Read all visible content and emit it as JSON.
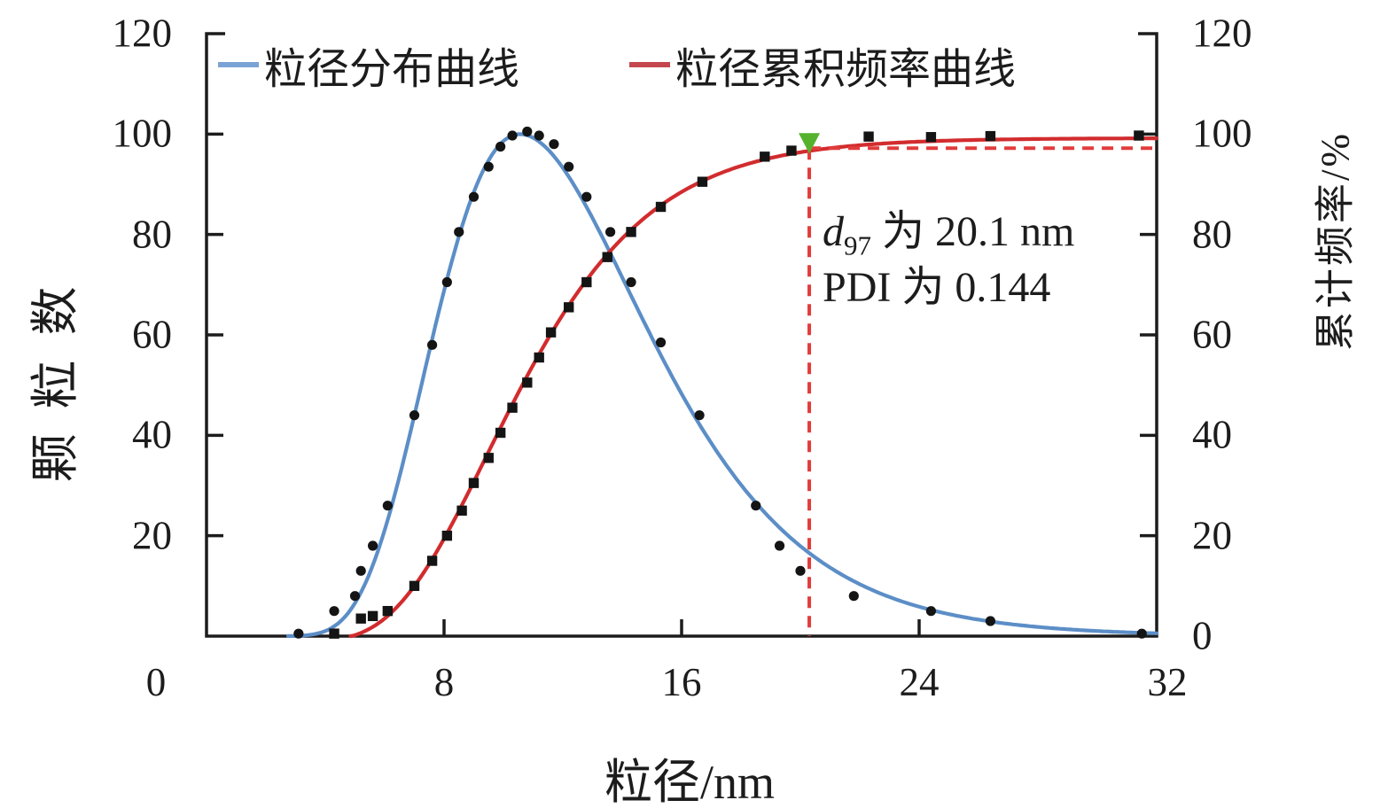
{
  "figure": {
    "background": "#ffffff",
    "annotation": {
      "line1_var": "d",
      "line1_sub": "97",
      "line1_rest": " 为 20.1 nm",
      "line2": "PDI 为 0.144"
    }
  },
  "chart_data": {
    "type": "line",
    "title": "",
    "x_label": "粒径/nm",
    "y_left_label": "颗粒数",
    "y_right_label": "累计频率/%",
    "x_range": [
      0,
      32
    ],
    "y_left_range": [
      0,
      120
    ],
    "y_right_range": [
      0,
      120
    ],
    "x_ticks": [
      0,
      8,
      16,
      24,
      32
    ],
    "y_left_ticks": [
      20,
      40,
      60,
      80,
      100,
      120
    ],
    "y_right_ticks": [
      0,
      20,
      40,
      60,
      80,
      100,
      120
    ],
    "grid": false,
    "legend_position": "top-inside",
    "axis_color": "#1c1c1c",
    "series": [
      {
        "name": "粒径分布曲线",
        "axis": "left",
        "type": "line+scatter",
        "marker": "circle",
        "color": "#5c8ec7",
        "legend_color": "#7aa3d5",
        "marker_color": "#141414",
        "x": [
          3.1,
          4.3,
          5.0,
          5.2,
          5.6,
          6.1,
          7.0,
          7.6,
          8.1,
          8.5,
          9.0,
          9.5,
          9.9,
          10.3,
          10.8,
          11.2,
          11.7,
          12.2,
          12.8,
          13.6,
          14.3,
          15.3,
          16.6,
          18.5,
          19.3,
          20.0,
          21.8,
          24.4,
          26.4,
          31.5
        ],
        "y": [
          0.5,
          5,
          8,
          13,
          18,
          26,
          44,
          58,
          70.5,
          80.5,
          87.5,
          93.5,
          97.5,
          99.7,
          100.5,
          99.7,
          98,
          93.5,
          87.5,
          80.5,
          70.5,
          58.5,
          44,
          26,
          18,
          13,
          8,
          5,
          3,
          0.5
        ],
        "model": {
          "kind": "lognormal_peak",
          "peak_x": 10.55,
          "sigma_left": 0.32,
          "sigma_right": 0.345,
          "amplitude": 100,
          "draw_from": 2.75,
          "draw_to": 32
        }
      },
      {
        "name": "粒径累积频率曲线",
        "axis": "right",
        "type": "line+scatter",
        "marker": "square",
        "color": "#d22c2e",
        "legend_color": "#c4474d",
        "marker_color": "#141414",
        "x": [
          4.3,
          5.2,
          5.6,
          6.1,
          7.0,
          7.6,
          8.1,
          8.6,
          9.0,
          9.5,
          9.9,
          10.3,
          10.8,
          11.2,
          11.6,
          12.2,
          12.8,
          13.5,
          14.3,
          15.3,
          16.7,
          18.8,
          19.7,
          22.3,
          24.4,
          26.4,
          31.4
        ],
        "y": [
          0.5,
          3.5,
          4,
          5,
          10,
          15,
          20,
          25,
          30.5,
          35.5,
          40.5,
          45.5,
          50.5,
          55.5,
          60.5,
          65.5,
          70.5,
          75.5,
          80.5,
          85.5,
          90.5,
          95.5,
          96.7,
          99.5,
          99.4,
          99.6,
          99.7
        ],
        "model": {
          "kind": "lognormal_cdf",
          "mu_x": 10.55,
          "sigma": 0.335,
          "scale": 100.3,
          "offset": -1.1,
          "draw_from": 4.85,
          "draw_to": 32
        }
      }
    ],
    "guides": {
      "x_value": 20.3,
      "y_value": 97.2,
      "line_color": "#e23c3c",
      "marker": {
        "shape": "triangle-down",
        "color": "#55b22c"
      }
    },
    "key_values": {
      "d97_nm": 20.1,
      "PDI": 0.144
    }
  }
}
